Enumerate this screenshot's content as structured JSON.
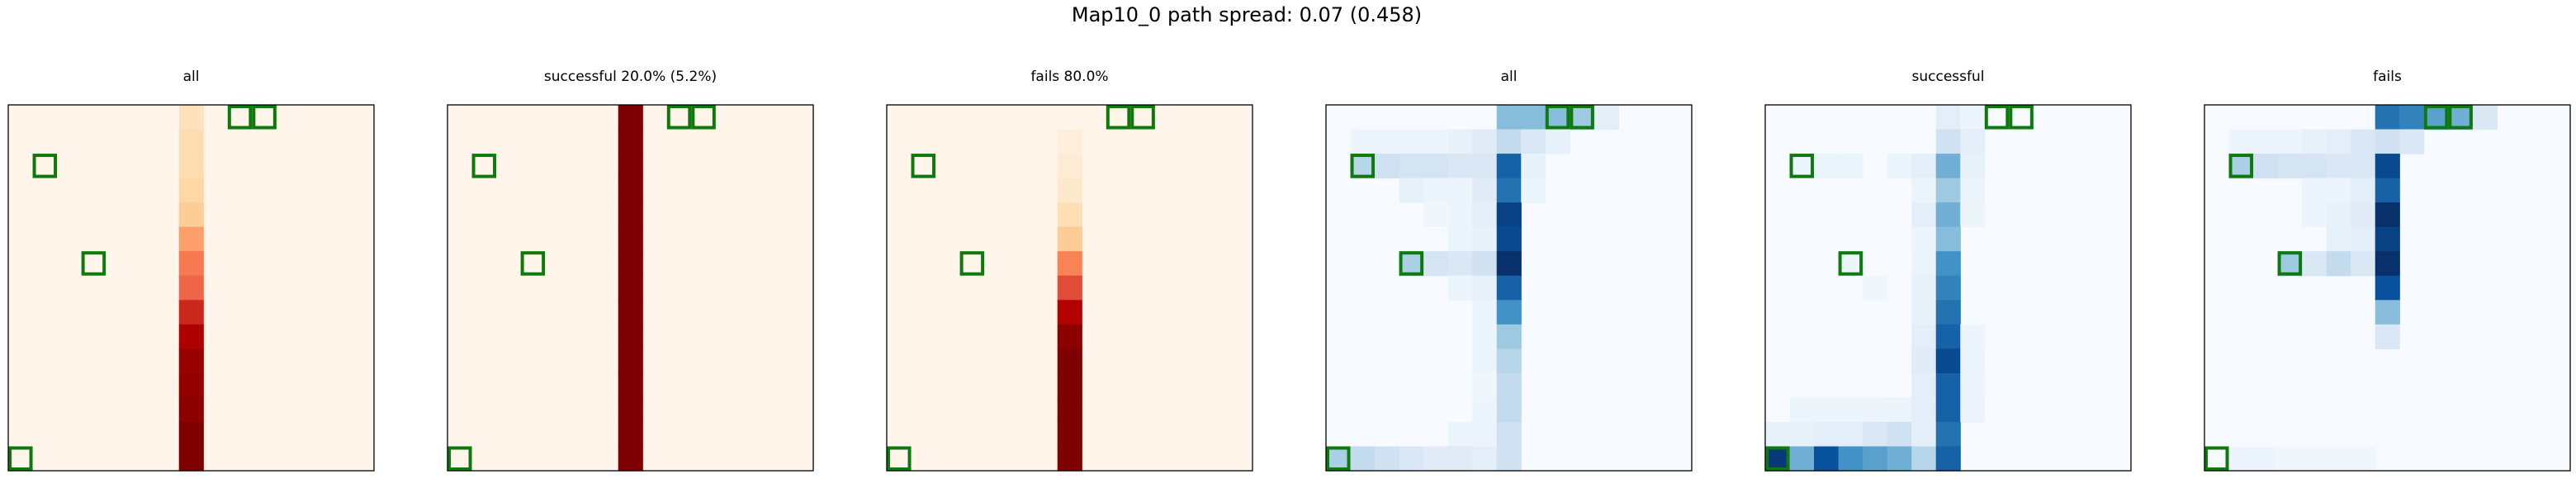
{
  "figure": {
    "suptitle": "Map10_0 path spread: 0.07 (0.458)",
    "marker_color": "#0e7a0e"
  },
  "chart_data": [
    {
      "type": "heatmap",
      "title": "all",
      "colormap": "Reds",
      "grid_size": [
        15,
        15
      ],
      "vmin": 0,
      "vmax": 1,
      "cells": [
        [
          0,
          7,
          0.12
        ],
        [
          1,
          7,
          0.15
        ],
        [
          2,
          7,
          0.15
        ],
        [
          3,
          7,
          0.18
        ],
        [
          4,
          7,
          0.22
        ],
        [
          5,
          7,
          0.35
        ],
        [
          6,
          7,
          0.5
        ],
        [
          7,
          7,
          0.6
        ],
        [
          8,
          7,
          0.72
        ],
        [
          9,
          7,
          0.82
        ],
        [
          10,
          7,
          0.9
        ],
        [
          11,
          7,
          0.92
        ],
        [
          12,
          7,
          0.95
        ],
        [
          13,
          7,
          1.0
        ],
        [
          14,
          7,
          1.0
        ]
      ],
      "markers": [
        [
          0,
          9
        ],
        [
          0,
          10
        ],
        [
          2,
          1
        ],
        [
          6,
          3
        ],
        [
          14,
          0
        ]
      ]
    },
    {
      "type": "heatmap",
      "title": "successful 20.0% (5.2%)",
      "colormap": "Reds",
      "grid_size": [
        15,
        15
      ],
      "vmin": 0,
      "vmax": 1,
      "cells": [
        [
          0,
          7,
          1.0
        ],
        [
          1,
          7,
          1.0
        ],
        [
          2,
          7,
          1.0
        ],
        [
          3,
          7,
          1.0
        ],
        [
          4,
          7,
          1.0
        ],
        [
          5,
          7,
          1.0
        ],
        [
          6,
          7,
          1.0
        ],
        [
          7,
          7,
          1.0
        ],
        [
          8,
          7,
          1.0
        ],
        [
          9,
          7,
          1.0
        ],
        [
          10,
          7,
          1.0
        ],
        [
          11,
          7,
          1.0
        ],
        [
          12,
          7,
          1.0
        ],
        [
          13,
          7,
          1.0
        ],
        [
          14,
          7,
          1.0
        ]
      ],
      "markers": [
        [
          0,
          9
        ],
        [
          0,
          10
        ],
        [
          2,
          1
        ],
        [
          6,
          3
        ],
        [
          14,
          0
        ]
      ]
    },
    {
      "type": "heatmap",
      "title": "fails 80.0%",
      "colormap": "Reds",
      "grid_size": [
        15,
        15
      ],
      "vmin": 0,
      "vmax": 1,
      "cells": [
        [
          1,
          7,
          0.04
        ],
        [
          2,
          7,
          0.06
        ],
        [
          3,
          7,
          0.08
        ],
        [
          4,
          7,
          0.14
        ],
        [
          5,
          7,
          0.22
        ],
        [
          6,
          7,
          0.45
        ],
        [
          7,
          7,
          0.65
        ],
        [
          8,
          7,
          0.8
        ],
        [
          9,
          7,
          0.95
        ],
        [
          10,
          7,
          1.0
        ],
        [
          11,
          7,
          1.0
        ],
        [
          12,
          7,
          1.0
        ],
        [
          13,
          7,
          1.0
        ],
        [
          14,
          7,
          1.0
        ]
      ],
      "markers": [
        [
          0,
          9
        ],
        [
          0,
          10
        ],
        [
          2,
          1
        ],
        [
          6,
          3
        ],
        [
          14,
          0
        ]
      ]
    },
    {
      "type": "heatmap",
      "title": "all",
      "colormap": "Blues",
      "grid_size": [
        15,
        15
      ],
      "vmin": 0,
      "vmax": 1,
      "cells": [
        [
          0,
          7,
          0.45
        ],
        [
          0,
          8,
          0.45
        ],
        [
          0,
          9,
          0.45
        ],
        [
          0,
          10,
          0.4
        ],
        [
          0,
          11,
          0.1
        ],
        [
          1,
          1,
          0.05
        ],
        [
          1,
          2,
          0.05
        ],
        [
          1,
          3,
          0.05
        ],
        [
          1,
          4,
          0.05
        ],
        [
          1,
          5,
          0.08
        ],
        [
          1,
          6,
          0.12
        ],
        [
          1,
          7,
          0.25
        ],
        [
          1,
          8,
          0.15
        ],
        [
          1,
          9,
          0.08
        ],
        [
          2,
          1,
          0.3
        ],
        [
          2,
          2,
          0.2
        ],
        [
          2,
          3,
          0.18
        ],
        [
          2,
          4,
          0.18
        ],
        [
          2,
          5,
          0.15
        ],
        [
          2,
          6,
          0.15
        ],
        [
          2,
          7,
          0.75
        ],
        [
          2,
          8,
          0.08
        ],
        [
          3,
          3,
          0.08
        ],
        [
          3,
          4,
          0.05
        ],
        [
          3,
          5,
          0.05
        ],
        [
          3,
          6,
          0.12
        ],
        [
          3,
          7,
          0.7
        ],
        [
          3,
          8,
          0.05
        ],
        [
          4,
          4,
          0.04
        ],
        [
          4,
          5,
          0.05
        ],
        [
          4,
          6,
          0.1
        ],
        [
          4,
          7,
          0.9
        ],
        [
          5,
          5,
          0.05
        ],
        [
          5,
          6,
          0.08
        ],
        [
          5,
          7,
          0.85
        ],
        [
          6,
          3,
          0.35
        ],
        [
          6,
          4,
          0.18
        ],
        [
          6,
          5,
          0.15
        ],
        [
          6,
          6,
          0.2
        ],
        [
          6,
          7,
          1.0
        ],
        [
          7,
          5,
          0.05
        ],
        [
          7,
          6,
          0.08
        ],
        [
          7,
          7,
          0.75
        ],
        [
          8,
          6,
          0.06
        ],
        [
          8,
          7,
          0.6
        ],
        [
          9,
          6,
          0.05
        ],
        [
          9,
          7,
          0.4
        ],
        [
          10,
          6,
          0.05
        ],
        [
          10,
          7,
          0.3
        ],
        [
          11,
          6,
          0.04
        ],
        [
          11,
          7,
          0.25
        ],
        [
          12,
          6,
          0.05
        ],
        [
          12,
          7,
          0.25
        ],
        [
          13,
          5,
          0.05
        ],
        [
          13,
          6,
          0.06
        ],
        [
          13,
          7,
          0.2
        ],
        [
          14,
          0,
          0.35
        ],
        [
          14,
          1,
          0.25
        ],
        [
          14,
          2,
          0.2
        ],
        [
          14,
          3,
          0.15
        ],
        [
          14,
          4,
          0.12
        ],
        [
          14,
          5,
          0.12
        ],
        [
          14,
          6,
          0.1
        ],
        [
          14,
          7,
          0.2
        ]
      ],
      "markers": [
        [
          0,
          9
        ],
        [
          0,
          10
        ],
        [
          2,
          1
        ],
        [
          6,
          3
        ],
        [
          14,
          0
        ]
      ]
    },
    {
      "type": "heatmap",
      "title": "successful",
      "colormap": "Blues",
      "grid_size": [
        15,
        15
      ],
      "vmin": 0,
      "vmax": 1,
      "cells": [
        [
          0,
          7,
          0.1
        ],
        [
          0,
          8,
          0.05
        ],
        [
          1,
          7,
          0.2
        ],
        [
          1,
          8,
          0.1
        ],
        [
          2,
          1,
          0.05
        ],
        [
          2,
          2,
          0.05
        ],
        [
          2,
          3,
          0.05
        ],
        [
          2,
          5,
          0.05
        ],
        [
          2,
          6,
          0.1
        ],
        [
          2,
          7,
          0.5
        ],
        [
          2,
          8,
          0.08
        ],
        [
          3,
          6,
          0.06
        ],
        [
          3,
          7,
          0.4
        ],
        [
          3,
          8,
          0.06
        ],
        [
          4,
          6,
          0.1
        ],
        [
          4,
          7,
          0.5
        ],
        [
          4,
          8,
          0.05
        ],
        [
          5,
          6,
          0.05
        ],
        [
          5,
          7,
          0.45
        ],
        [
          6,
          3,
          0.05
        ],
        [
          6,
          6,
          0.06
        ],
        [
          6,
          7,
          0.6
        ],
        [
          7,
          4,
          0.04
        ],
        [
          7,
          6,
          0.08
        ],
        [
          7,
          7,
          0.65
        ],
        [
          8,
          6,
          0.08
        ],
        [
          8,
          7,
          0.7
        ],
        [
          9,
          6,
          0.1
        ],
        [
          9,
          7,
          0.75
        ],
        [
          9,
          8,
          0.05
        ],
        [
          10,
          6,
          0.12
        ],
        [
          10,
          7,
          0.85
        ],
        [
          10,
          8,
          0.06
        ],
        [
          11,
          6,
          0.1
        ],
        [
          11,
          7,
          0.75
        ],
        [
          11,
          8,
          0.05
        ],
        [
          12,
          1,
          0.05
        ],
        [
          12,
          2,
          0.05
        ],
        [
          12,
          3,
          0.05
        ],
        [
          12,
          4,
          0.05
        ],
        [
          12,
          5,
          0.06
        ],
        [
          12,
          6,
          0.1
        ],
        [
          12,
          7,
          0.75
        ],
        [
          12,
          8,
          0.06
        ],
        [
          13,
          0,
          0.08
        ],
        [
          13,
          1,
          0.08
        ],
        [
          13,
          2,
          0.1
        ],
        [
          13,
          3,
          0.1
        ],
        [
          13,
          4,
          0.15
        ],
        [
          13,
          5,
          0.2
        ],
        [
          13,
          6,
          0.1
        ],
        [
          13,
          7,
          0.7
        ],
        [
          14,
          0,
          0.95
        ],
        [
          14,
          1,
          0.5
        ],
        [
          14,
          2,
          0.8
        ],
        [
          14,
          3,
          0.6
        ],
        [
          14,
          4,
          0.55
        ],
        [
          14,
          5,
          0.5
        ],
        [
          14,
          6,
          0.3
        ],
        [
          14,
          7,
          0.75
        ]
      ],
      "markers": [
        [
          0,
          9
        ],
        [
          0,
          10
        ],
        [
          2,
          1
        ],
        [
          6,
          3
        ],
        [
          14,
          0
        ]
      ]
    },
    {
      "type": "heatmap",
      "title": "fails",
      "colormap": "Blues",
      "grid_size": [
        15,
        15
      ],
      "vmin": 0,
      "vmax": 1,
      "cells": [
        [
          0,
          7,
          0.7
        ],
        [
          0,
          8,
          0.65
        ],
        [
          0,
          9,
          0.55
        ],
        [
          0,
          10,
          0.5
        ],
        [
          0,
          11,
          0.15
        ],
        [
          1,
          1,
          0.05
        ],
        [
          1,
          2,
          0.05
        ],
        [
          1,
          3,
          0.05
        ],
        [
          1,
          4,
          0.08
        ],
        [
          1,
          5,
          0.1
        ],
        [
          1,
          6,
          0.15
        ],
        [
          1,
          7,
          0.2
        ],
        [
          1,
          8,
          0.15
        ],
        [
          2,
          1,
          0.35
        ],
        [
          2,
          2,
          0.2
        ],
        [
          2,
          3,
          0.18
        ],
        [
          2,
          4,
          0.18
        ],
        [
          2,
          5,
          0.15
        ],
        [
          2,
          6,
          0.15
        ],
        [
          2,
          7,
          0.85
        ],
        [
          3,
          4,
          0.05
        ],
        [
          3,
          5,
          0.05
        ],
        [
          3,
          6,
          0.1
        ],
        [
          3,
          7,
          0.75
        ],
        [
          4,
          4,
          0.05
        ],
        [
          4,
          5,
          0.08
        ],
        [
          4,
          6,
          0.12
        ],
        [
          4,
          7,
          1.0
        ],
        [
          5,
          5,
          0.08
        ],
        [
          5,
          6,
          0.1
        ],
        [
          5,
          7,
          0.9
        ],
        [
          6,
          3,
          0.4
        ],
        [
          6,
          4,
          0.15
        ],
        [
          6,
          5,
          0.25
        ],
        [
          6,
          6,
          0.15
        ],
        [
          6,
          7,
          1.0
        ],
        [
          7,
          7,
          0.8
        ],
        [
          8,
          7,
          0.45
        ],
        [
          9,
          7,
          0.15
        ],
        [
          14,
          1,
          0.05
        ],
        [
          14,
          2,
          0.05
        ],
        [
          14,
          3,
          0.04
        ],
        [
          14,
          4,
          0.04
        ],
        [
          14,
          5,
          0.04
        ],
        [
          14,
          6,
          0.04
        ]
      ],
      "markers": [
        [
          0,
          9
        ],
        [
          0,
          10
        ],
        [
          2,
          1
        ],
        [
          6,
          3
        ],
        [
          14,
          0
        ]
      ]
    }
  ]
}
